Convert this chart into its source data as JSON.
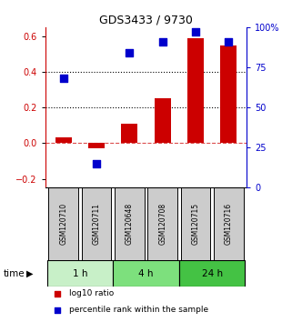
{
  "title": "GDS3433 / 9730",
  "samples": [
    "GSM120710",
    "GSM120711",
    "GSM120648",
    "GSM120708",
    "GSM120715",
    "GSM120716"
  ],
  "log10_ratio": [
    0.033,
    -0.03,
    0.11,
    0.25,
    0.59,
    0.55
  ],
  "percentile_rank": [
    68,
    15,
    84,
    91,
    97,
    91
  ],
  "ylim_left": [
    -0.25,
    0.65
  ],
  "ylim_right": [
    0,
    100
  ],
  "yticks_left": [
    -0.2,
    0.0,
    0.2,
    0.4,
    0.6
  ],
  "yticks_right": [
    0,
    25,
    50,
    75,
    100
  ],
  "ytick_labels_right": [
    "0",
    "25",
    "50",
    "75",
    "100%"
  ],
  "time_groups": [
    {
      "label": "1 h",
      "start": 0,
      "end": 2,
      "color": "#c8f0c8"
    },
    {
      "label": "4 h",
      "start": 2,
      "end": 4,
      "color": "#7de07d"
    },
    {
      "label": "24 h",
      "start": 4,
      "end": 6,
      "color": "#44c244"
    }
  ],
  "bar_color": "#cc0000",
  "square_color": "#0000cc",
  "bar_width": 0.5,
  "background_color": "#ffffff",
  "sample_box_color": "#cccccc",
  "legend_items": [
    "log10 ratio",
    "percentile rank within the sample"
  ]
}
